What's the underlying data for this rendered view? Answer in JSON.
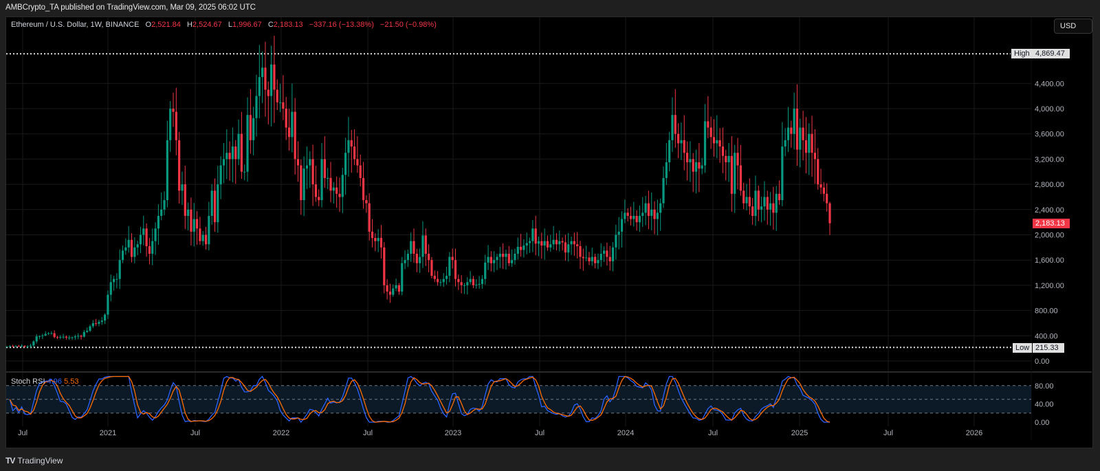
{
  "publish_bar": "AMBCrypto_TA published on TradingView.com, Mar 09, 2025 06:02 UTC",
  "legend": {
    "symbol": "Ethereum / U.S. Dollar, 1W, BINANCE",
    "open_label": "O",
    "open": "2,521.84",
    "high_label": "H",
    "high": "2,524.67",
    "low_label": "L",
    "low": "1,996.67",
    "close_label": "C",
    "close": "2,183.13",
    "change": "−337.16 (−13.38%)",
    "change2": "−21.50 (−0.98%)"
  },
  "currency_button": "USD",
  "price_tags": {
    "high_label": "High",
    "high_value": "4,869.47",
    "low_label": "Low",
    "low_value": "215.33",
    "last_value": "2,183.13"
  },
  "stoch_rsi": {
    "name": "Stoch RSI",
    "k": "4.96",
    "d": "5.53"
  },
  "footer": {
    "brand": "TradingView"
  },
  "colors": {
    "up": "#089981",
    "down": "#f23645",
    "k_line": "#2962ff",
    "d_line": "#ff6d00",
    "bg": "#000000",
    "grid": "#1a1a1a",
    "band": "#0b1a26"
  },
  "chart_data": [
    {
      "type": "candlestick",
      "title": "Ethereum / U.S. Dollar, 1W, BINANCE",
      "xlabel": "",
      "ylabel": "USD",
      "x_ticks": [
        "Jul",
        "2021",
        "Jul",
        "2022",
        "Jul",
        "2023",
        "Jul",
        "2024",
        "Jul",
        "2025",
        "Jul",
        "2026"
      ],
      "y_ticks": [
        "4,400.00",
        "4,000.00",
        "3,600.00",
        "3,200.00",
        "2,800.00",
        "2,400.00",
        "2,000.00",
        "1,600.00",
        "1,200.00",
        "800.00",
        "400.00",
        "0.00"
      ],
      "ylim": [
        0,
        5000
      ],
      "annotations": {
        "high": 4869.47,
        "low": 215.33,
        "last": 2183.13
      },
      "weekly_close_approx": [
        230,
        235,
        232,
        238,
        236,
        240,
        228,
        232,
        245,
        310,
        390,
        395,
        405,
        430,
        440,
        440,
        380,
        370,
        380,
        385,
        370,
        372,
        375,
        390,
        400,
        385,
        460,
        480,
        550,
        600,
        590,
        620,
        640,
        735,
        1050,
        1250,
        1300,
        1300,
        1600,
        1750,
        1800,
        1920,
        1650,
        1800,
        1850,
        2000,
        2100,
        1820,
        1700,
        1900,
        2100,
        2300,
        2400,
        2550,
        3500,
        4000,
        3950,
        3500,
        2700,
        2800,
        2300,
        2400,
        2050,
        2250,
        2100,
        1900,
        2000,
        1850,
        2300,
        2700,
        2200,
        2800,
        3100,
        3200,
        3300,
        3200,
        3400,
        3200,
        3600,
        3000,
        3000,
        3900,
        3500,
        3850,
        4200,
        4500,
        4650,
        4300,
        4200,
        4700,
        4300,
        4100,
        4100,
        4000,
        3700,
        3550,
        3950,
        3200,
        3100,
        2550,
        3050,
        3100,
        3200,
        2800,
        2600,
        2550,
        3200,
        2900,
        2900,
        2700,
        2750,
        2650,
        2600,
        2950,
        3300,
        3500,
        3400,
        3200,
        3100,
        2900,
        2550,
        2500,
        2050,
        1950,
        1900,
        1950,
        1800,
        1200,
        1100,
        1050,
        1150,
        1200,
        1100,
        1550,
        1600,
        1700,
        1900,
        1700,
        1550,
        1650,
        1990,
        1700,
        1600,
        1350,
        1300,
        1250,
        1250,
        1300,
        1350,
        1650,
        1600,
        1300,
        1250,
        1200,
        1200,
        1250,
        1300,
        1200,
        1210,
        1220,
        1300,
        1560,
        1650,
        1550,
        1600,
        1650,
        1700,
        1650,
        1700,
        1550,
        1600,
        1700,
        1810,
        1760,
        1830,
        1870,
        1900,
        2100,
        1860,
        1900,
        1830,
        1900,
        1800,
        1850,
        1920,
        1850,
        1900,
        1880,
        1720,
        1850,
        1900,
        1850,
        1820,
        1650,
        1630,
        1640,
        1580,
        1650,
        1550,
        1600,
        1700,
        1750,
        1650,
        1580,
        1800,
        2000,
        2050,
        2250,
        2350,
        2300,
        2250,
        2300,
        2200,
        2300,
        2350,
        2500,
        2300,
        2400,
        2250,
        2350,
        2500,
        2900,
        3150,
        3500,
        3900,
        3600,
        3450,
        3500,
        3300,
        3150,
        3200,
        3000,
        3150,
        3050,
        3100,
        3800,
        3700,
        3550,
        3450,
        3500,
        3400,
        3250,
        3150,
        3250,
        2650,
        3300,
        3100,
        2700,
        2500,
        2600,
        2450,
        2300,
        2700,
        2400,
        2450,
        2600,
        2400,
        2500,
        2350,
        2650,
        2550,
        3400,
        3500,
        3700,
        3600,
        4000,
        3350,
        3700,
        3500,
        3300,
        3600,
        3300,
        3200,
        2800,
        2750,
        2650,
        2500,
        2183
      ]
    },
    {
      "type": "line",
      "title": "Stoch RSI",
      "series": [
        {
          "name": "K",
          "last": 4.96
        },
        {
          "name": "D",
          "last": 5.53
        }
      ],
      "y_ticks": [
        "80.00",
        "40.00",
        "0.00"
      ],
      "bands": [
        20,
        50,
        80
      ],
      "ylim": [
        0,
        100
      ]
    }
  ]
}
